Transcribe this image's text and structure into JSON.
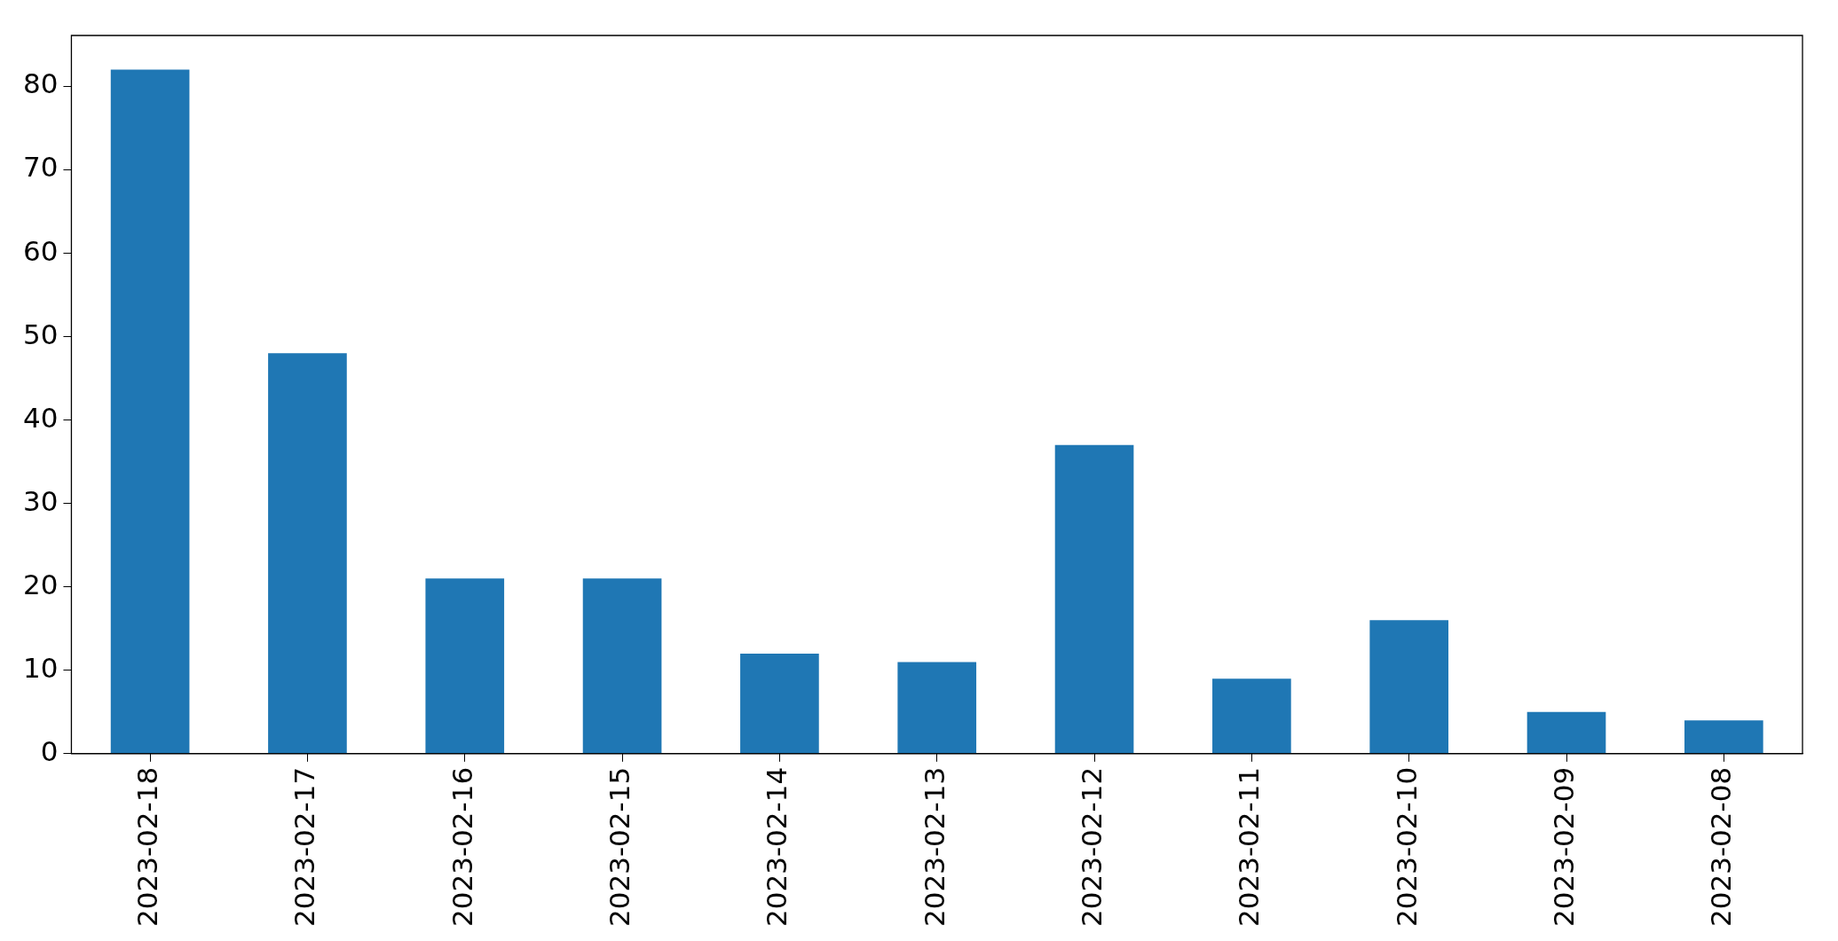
{
  "chart_data": {
    "type": "bar",
    "categories": [
      "2023-02-18",
      "2023-02-17",
      "2023-02-16",
      "2023-02-15",
      "2023-02-14",
      "2023-02-13",
      "2023-02-12",
      "2023-02-11",
      "2023-02-10",
      "2023-02-09",
      "2023-02-08"
    ],
    "values": [
      82,
      48,
      21,
      21,
      12,
      11,
      37,
      9,
      16,
      5,
      4
    ],
    "color": "#1f77b4",
    "ylim": [
      0,
      86.1
    ],
    "yticks": [
      0,
      10,
      20,
      30,
      40,
      50,
      60,
      70,
      80
    ]
  }
}
